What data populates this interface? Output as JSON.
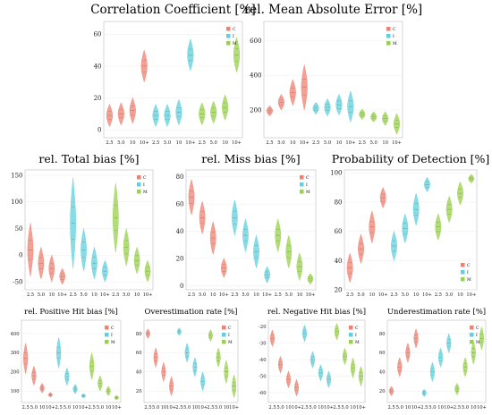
{
  "colors": {
    "C": "#f08070",
    "I": "#5fd0dd",
    "M": "#98d14a"
  },
  "chart_data": [
    {
      "type": "violin",
      "title": "Correlation Coefficient [%]",
      "legend": [
        "C",
        "I",
        "M"
      ],
      "legend_position": "top-right",
      "categories": [
        "2.5",
        "5.0",
        "10",
        "10+"
      ],
      "ylim": [
        -5,
        68
      ],
      "yticks": [
        0,
        20,
        40,
        60
      ],
      "series": [
        {
          "name": "C",
          "values": [
            9,
            10,
            12,
            40
          ],
          "spread": [
            7,
            7,
            8,
            10
          ]
        },
        {
          "name": "I",
          "values": [
            9,
            9,
            11,
            47
          ],
          "spread": [
            7,
            7,
            8,
            10
          ]
        },
        {
          "name": "M",
          "values": [
            10,
            11,
            14,
            47
          ],
          "spread": [
            7,
            7,
            8,
            11
          ]
        }
      ]
    },
    {
      "type": "violin",
      "title": "rel. Mean Absolute Error [%]",
      "legend": [
        "C",
        "I",
        "M"
      ],
      "legend_position": "top-right",
      "categories": [
        "2.5",
        "5.0",
        "10",
        "10+"
      ],
      "ylim": [
        40,
        710
      ],
      "yticks": [
        200,
        400,
        600
      ],
      "series": [
        {
          "name": "C",
          "values": [
            195,
            245,
            300,
            330
          ],
          "spread": [
            30,
            45,
            75,
            130
          ]
        },
        {
          "name": "I",
          "values": [
            210,
            215,
            230,
            220
          ],
          "spread": [
            35,
            50,
            60,
            90
          ]
        },
        {
          "name": "M",
          "values": [
            175,
            160,
            150,
            120
          ],
          "spread": [
            30,
            30,
            40,
            60
          ]
        }
      ]
    },
    {
      "type": "violin",
      "title": "rel. Total bias [%]",
      "legend": [
        "C",
        "I",
        "M"
      ],
      "legend_position": "top-right",
      "categories": [
        "2.5",
        "5.0",
        "10",
        "10+"
      ],
      "ylim": [
        -65,
        160
      ],
      "yticks": [
        -50,
        0,
        50,
        100,
        150
      ],
      "series": [
        {
          "name": "C",
          "values": [
            10,
            -15,
            -25,
            -40
          ],
          "spread": [
            50,
            30,
            25,
            15
          ]
        },
        {
          "name": "I",
          "values": [
            60,
            10,
            -15,
            -30
          ],
          "spread": [
            85,
            40,
            30,
            20
          ]
        },
        {
          "name": "M",
          "values": [
            70,
            15,
            -10,
            -30
          ],
          "spread": [
            65,
            35,
            25,
            20
          ]
        }
      ]
    },
    {
      "type": "violin",
      "title": "rel. Miss bias [%]",
      "legend": [
        "C",
        "I",
        "M"
      ],
      "legend_position": "top-right",
      "categories": [
        "2.5",
        "5.0",
        "10",
        "10+"
      ],
      "ylim": [
        -3,
        85
      ],
      "yticks": [
        0,
        20,
        40,
        60,
        80
      ],
      "series": [
        {
          "name": "C",
          "values": [
            65,
            50,
            35,
            13
          ],
          "spread": [
            13,
            12,
            12,
            7
          ]
        },
        {
          "name": "I",
          "values": [
            50,
            37,
            25,
            8
          ],
          "spread": [
            13,
            12,
            12,
            6
          ]
        },
        {
          "name": "M",
          "values": [
            37,
            25,
            14,
            5
          ],
          "spread": [
            12,
            12,
            10,
            4
          ]
        }
      ]
    },
    {
      "type": "violin",
      "title": "Probability of Detection [%]",
      "legend": [
        "C",
        "I",
        "M"
      ],
      "legend_position": "bottom-right",
      "categories": [
        "2.5",
        "5.0",
        "10",
        "10+"
      ],
      "ylim": [
        20,
        102
      ],
      "yticks": [
        20,
        40,
        60,
        80,
        100
      ],
      "series": [
        {
          "name": "C",
          "values": [
            35,
            48,
            63,
            83
          ],
          "spread": [
            10,
            10,
            11,
            7
          ]
        },
        {
          "name": "I",
          "values": [
            50,
            62,
            75,
            92
          ],
          "spread": [
            10,
            10,
            11,
            5
          ]
        },
        {
          "name": "M",
          "values": [
            63,
            75,
            86,
            96
          ],
          "spread": [
            9,
            9,
            8,
            3
          ]
        }
      ]
    },
    {
      "type": "violin",
      "title": "rel. Positive Hit bias [%]",
      "legend": [
        "C",
        "I",
        "M"
      ],
      "legend_position": "top-right",
      "categories": [
        "2.5",
        "5.0",
        "10",
        "10+"
      ],
      "ylim": [
        40,
        470
      ],
      "yticks": [
        100,
        200,
        300,
        400
      ],
      "series": [
        {
          "name": "C",
          "values": [
            270,
            180,
            115,
            80
          ],
          "spread": [
            80,
            50,
            25,
            12
          ]
        },
        {
          "name": "I",
          "values": [
            300,
            175,
            110,
            75
          ],
          "spread": [
            80,
            45,
            25,
            12
          ]
        },
        {
          "name": "M",
          "values": [
            230,
            140,
            100,
            65
          ],
          "spread": [
            70,
            40,
            25,
            12
          ]
        }
      ]
    },
    {
      "type": "violin",
      "title": "Overestimation rate [%]",
      "legend": [
        "C",
        "I",
        "M"
      ],
      "legend_position": "top-right",
      "categories": [
        "2.5",
        "5.0",
        "10",
        "10+"
      ],
      "ylim": [
        8,
        94
      ],
      "yticks": [
        20,
        40,
        60,
        80
      ],
      "series": [
        {
          "name": "C",
          "values": [
            80,
            55,
            40,
            25
          ],
          "spread": [
            5,
            10,
            10,
            10
          ]
        },
        {
          "name": "I",
          "values": [
            82,
            60,
            45,
            30
          ],
          "spread": [
            4,
            10,
            10,
            10
          ]
        },
        {
          "name": "M",
          "values": [
            78,
            55,
            40,
            25
          ],
          "spread": [
            6,
            10,
            12,
            12
          ]
        }
      ]
    },
    {
      "type": "violin",
      "title": "rel. Negative Hit bias [%]",
      "legend": [
        "C",
        "I",
        "M"
      ],
      "legend_position": "top-right",
      "categories": [
        "2.5",
        "5.0",
        "10",
        "10+"
      ],
      "ylim": [
        -66,
        -16
      ],
      "yticks": [
        -60,
        -50,
        -40,
        -30,
        -20
      ],
      "series": [
        {
          "name": "C",
          "values": [
            -27,
            -43,
            -52,
            -57
          ],
          "spread": [
            5,
            5,
            5,
            5
          ]
        },
        {
          "name": "I",
          "values": [
            -24,
            -40,
            -48,
            -52
          ],
          "spread": [
            5,
            5,
            5,
            5
          ]
        },
        {
          "name": "M",
          "values": [
            -23,
            -38,
            -45,
            -50
          ],
          "spread": [
            5,
            5,
            6,
            6
          ]
        }
      ]
    },
    {
      "type": "violin",
      "title": "Underestimation rate [%]",
      "legend": [
        "C",
        "I",
        "M"
      ],
      "legend_position": "top-right",
      "categories": [
        "2.5",
        "5.0",
        "10",
        "10+"
      ],
      "ylim": [
        8,
        94
      ],
      "yticks": [
        20,
        40,
        60,
        80
      ],
      "series": [
        {
          "name": "C",
          "values": [
            20,
            45,
            60,
            75
          ],
          "spread": [
            5,
            10,
            10,
            10
          ]
        },
        {
          "name": "I",
          "values": [
            18,
            40,
            55,
            70
          ],
          "spread": [
            4,
            10,
            10,
            10
          ]
        },
        {
          "name": "M",
          "values": [
            22,
            45,
            60,
            75
          ],
          "spread": [
            6,
            10,
            12,
            12
          ]
        }
      ]
    }
  ]
}
